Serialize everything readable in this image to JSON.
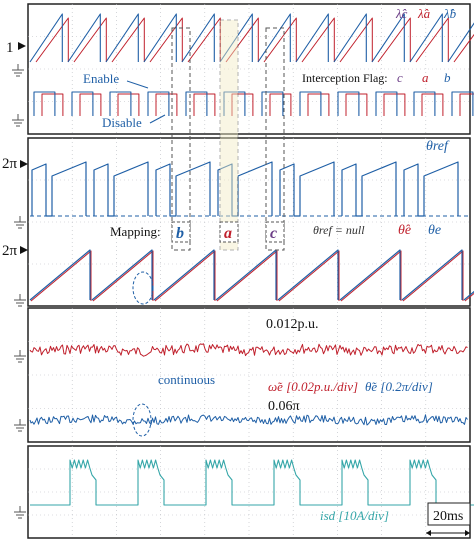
{
  "colors": {
    "red": "#c0202c",
    "blue": "#1f5fa6",
    "teal": "#35a6a8",
    "purple": "#6b3d86",
    "grid": "#b9bcc2",
    "frame": "#222222"
  },
  "labels": {
    "level_1": "1",
    "level_2pi_a": "2π",
    "level_2pi_b": "2π",
    "enable": "Enable",
    "disable": "Disable",
    "interception_flag": "Interception Flag:",
    "flag_c": "c",
    "flag_a": "a",
    "flag_b": "b",
    "lambda_c": "λ̂c",
    "lambda_a": "λ̂a",
    "lambda_b": "λ̂b",
    "theta_ref": "θref",
    "mapping": "Mapping:",
    "map_b": "b",
    "map_a": "a",
    "map_c": "c",
    "theta_ref_null": "θref = null",
    "theta_e_hat": "θ̂e",
    "theta_e": "θe",
    "amp_012": "0.012p.u.",
    "amp_006": "0.06π",
    "continuous": "continuous",
    "omega_scale": "ω̃e [0.02p.u./div]",
    "theta_scale": "θ̃e [0.2π/div]",
    "current_scale": "isd [10A/div]",
    "time_scale": "20ms"
  }
}
